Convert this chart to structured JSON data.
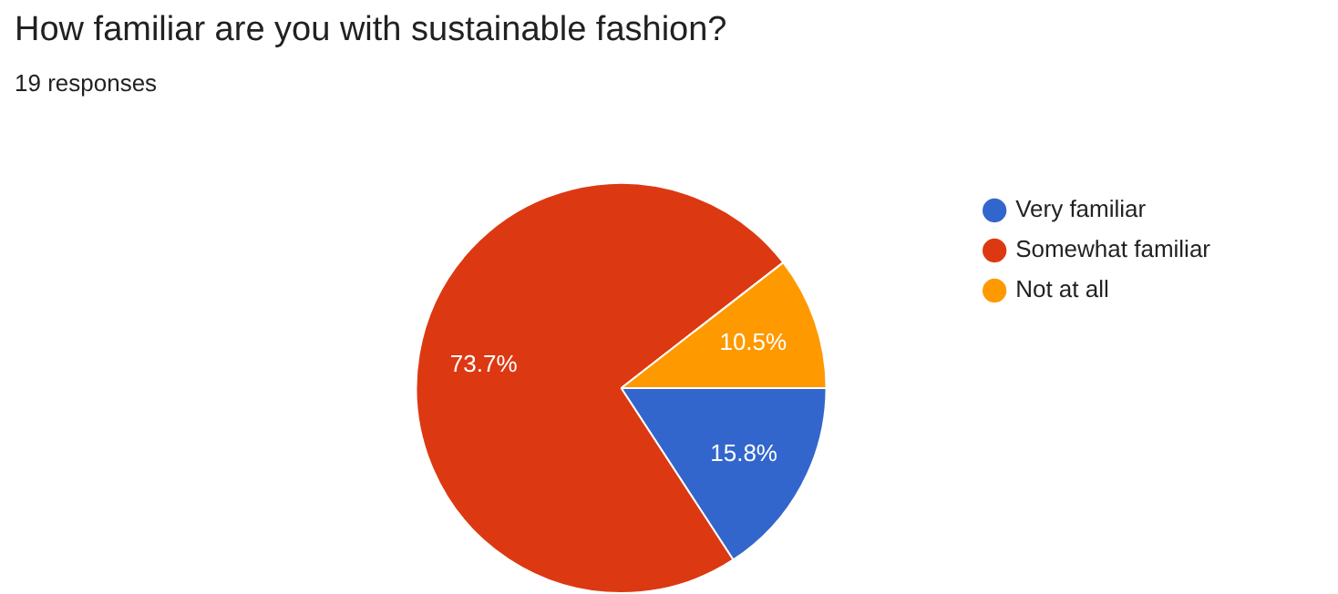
{
  "chart_data": {
    "type": "pie",
    "title": "How familiar are you with sustainable fashion?",
    "subtitle": "19 responses",
    "categories": [
      "Very familiar",
      "Somewhat familiar",
      "Not at all"
    ],
    "values": [
      15.8,
      73.7,
      10.5
    ],
    "colors": [
      "#3366cc",
      "#dc3912",
      "#ff9900"
    ],
    "value_labels": [
      "15.8%",
      "73.7%",
      "10.5%"
    ],
    "legend": "right"
  }
}
